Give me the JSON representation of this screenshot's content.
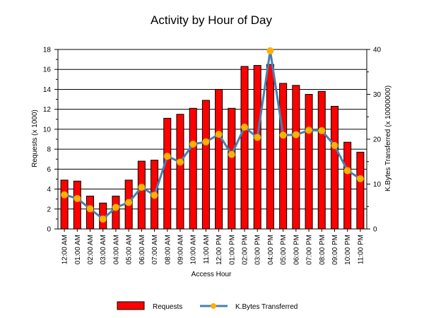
{
  "chart_data": {
    "type": "bar",
    "title": "Activity by Hour of Day",
    "xlabel": "Access Hour",
    "ylabel": "Requests (x 1000)",
    "y2label": "K.Bytes Transferred (x 10000000)",
    "ylim": [
      0,
      18
    ],
    "y2lim": [
      0,
      40
    ],
    "yticks": [
      "0",
      "2",
      "4",
      "6",
      "8",
      "10",
      "12",
      "14",
      "16",
      "18"
    ],
    "y2ticks": [
      "0",
      "10",
      "20",
      "30",
      "40"
    ],
    "grid": true,
    "legend_position": "bottom",
    "categories": [
      "12:00 AM",
      "01:00 AM",
      "02:00 AM",
      "03:00 AM",
      "04:00 AM",
      "05:00 AM",
      "06:00 AM",
      "07:00 AM",
      "08:00 AM",
      "09:00 AM",
      "10:00 AM",
      "11:00 AM",
      "12:00 PM",
      "01:00 PM",
      "02:00 PM",
      "03:00 PM",
      "04:00 PM",
      "05:00 PM",
      "06:00 PM",
      "07:00 PM",
      "08:00 PM",
      "09:00 PM",
      "10:00 PM",
      "11:00 PM"
    ],
    "series": [
      {
        "name": "Requests",
        "type": "bar",
        "axis": "left",
        "color": "#ff0000",
        "values": [
          4.9,
          4.8,
          3.3,
          2.6,
          3.3,
          4.9,
          6.8,
          6.9,
          11.1,
          11.5,
          12.1,
          12.9,
          14.0,
          12.1,
          16.3,
          16.4,
          16.5,
          14.6,
          14.4,
          13.5,
          13.8,
          12.3,
          8.7,
          7.7
        ]
      },
      {
        "name": "K.Bytes Transferred",
        "type": "line",
        "axis": "right",
        "color": "#4a7fb0",
        "marker_color": "#ffb000",
        "values": [
          7.6,
          6.8,
          4.5,
          2.2,
          4.8,
          5.9,
          9.3,
          7.5,
          16.2,
          14.9,
          18.9,
          19.4,
          21.1,
          16.6,
          22.7,
          20.4,
          39.7,
          20.9,
          21.0,
          22.0,
          21.9,
          18.6,
          13.0,
          11.2
        ]
      }
    ]
  }
}
